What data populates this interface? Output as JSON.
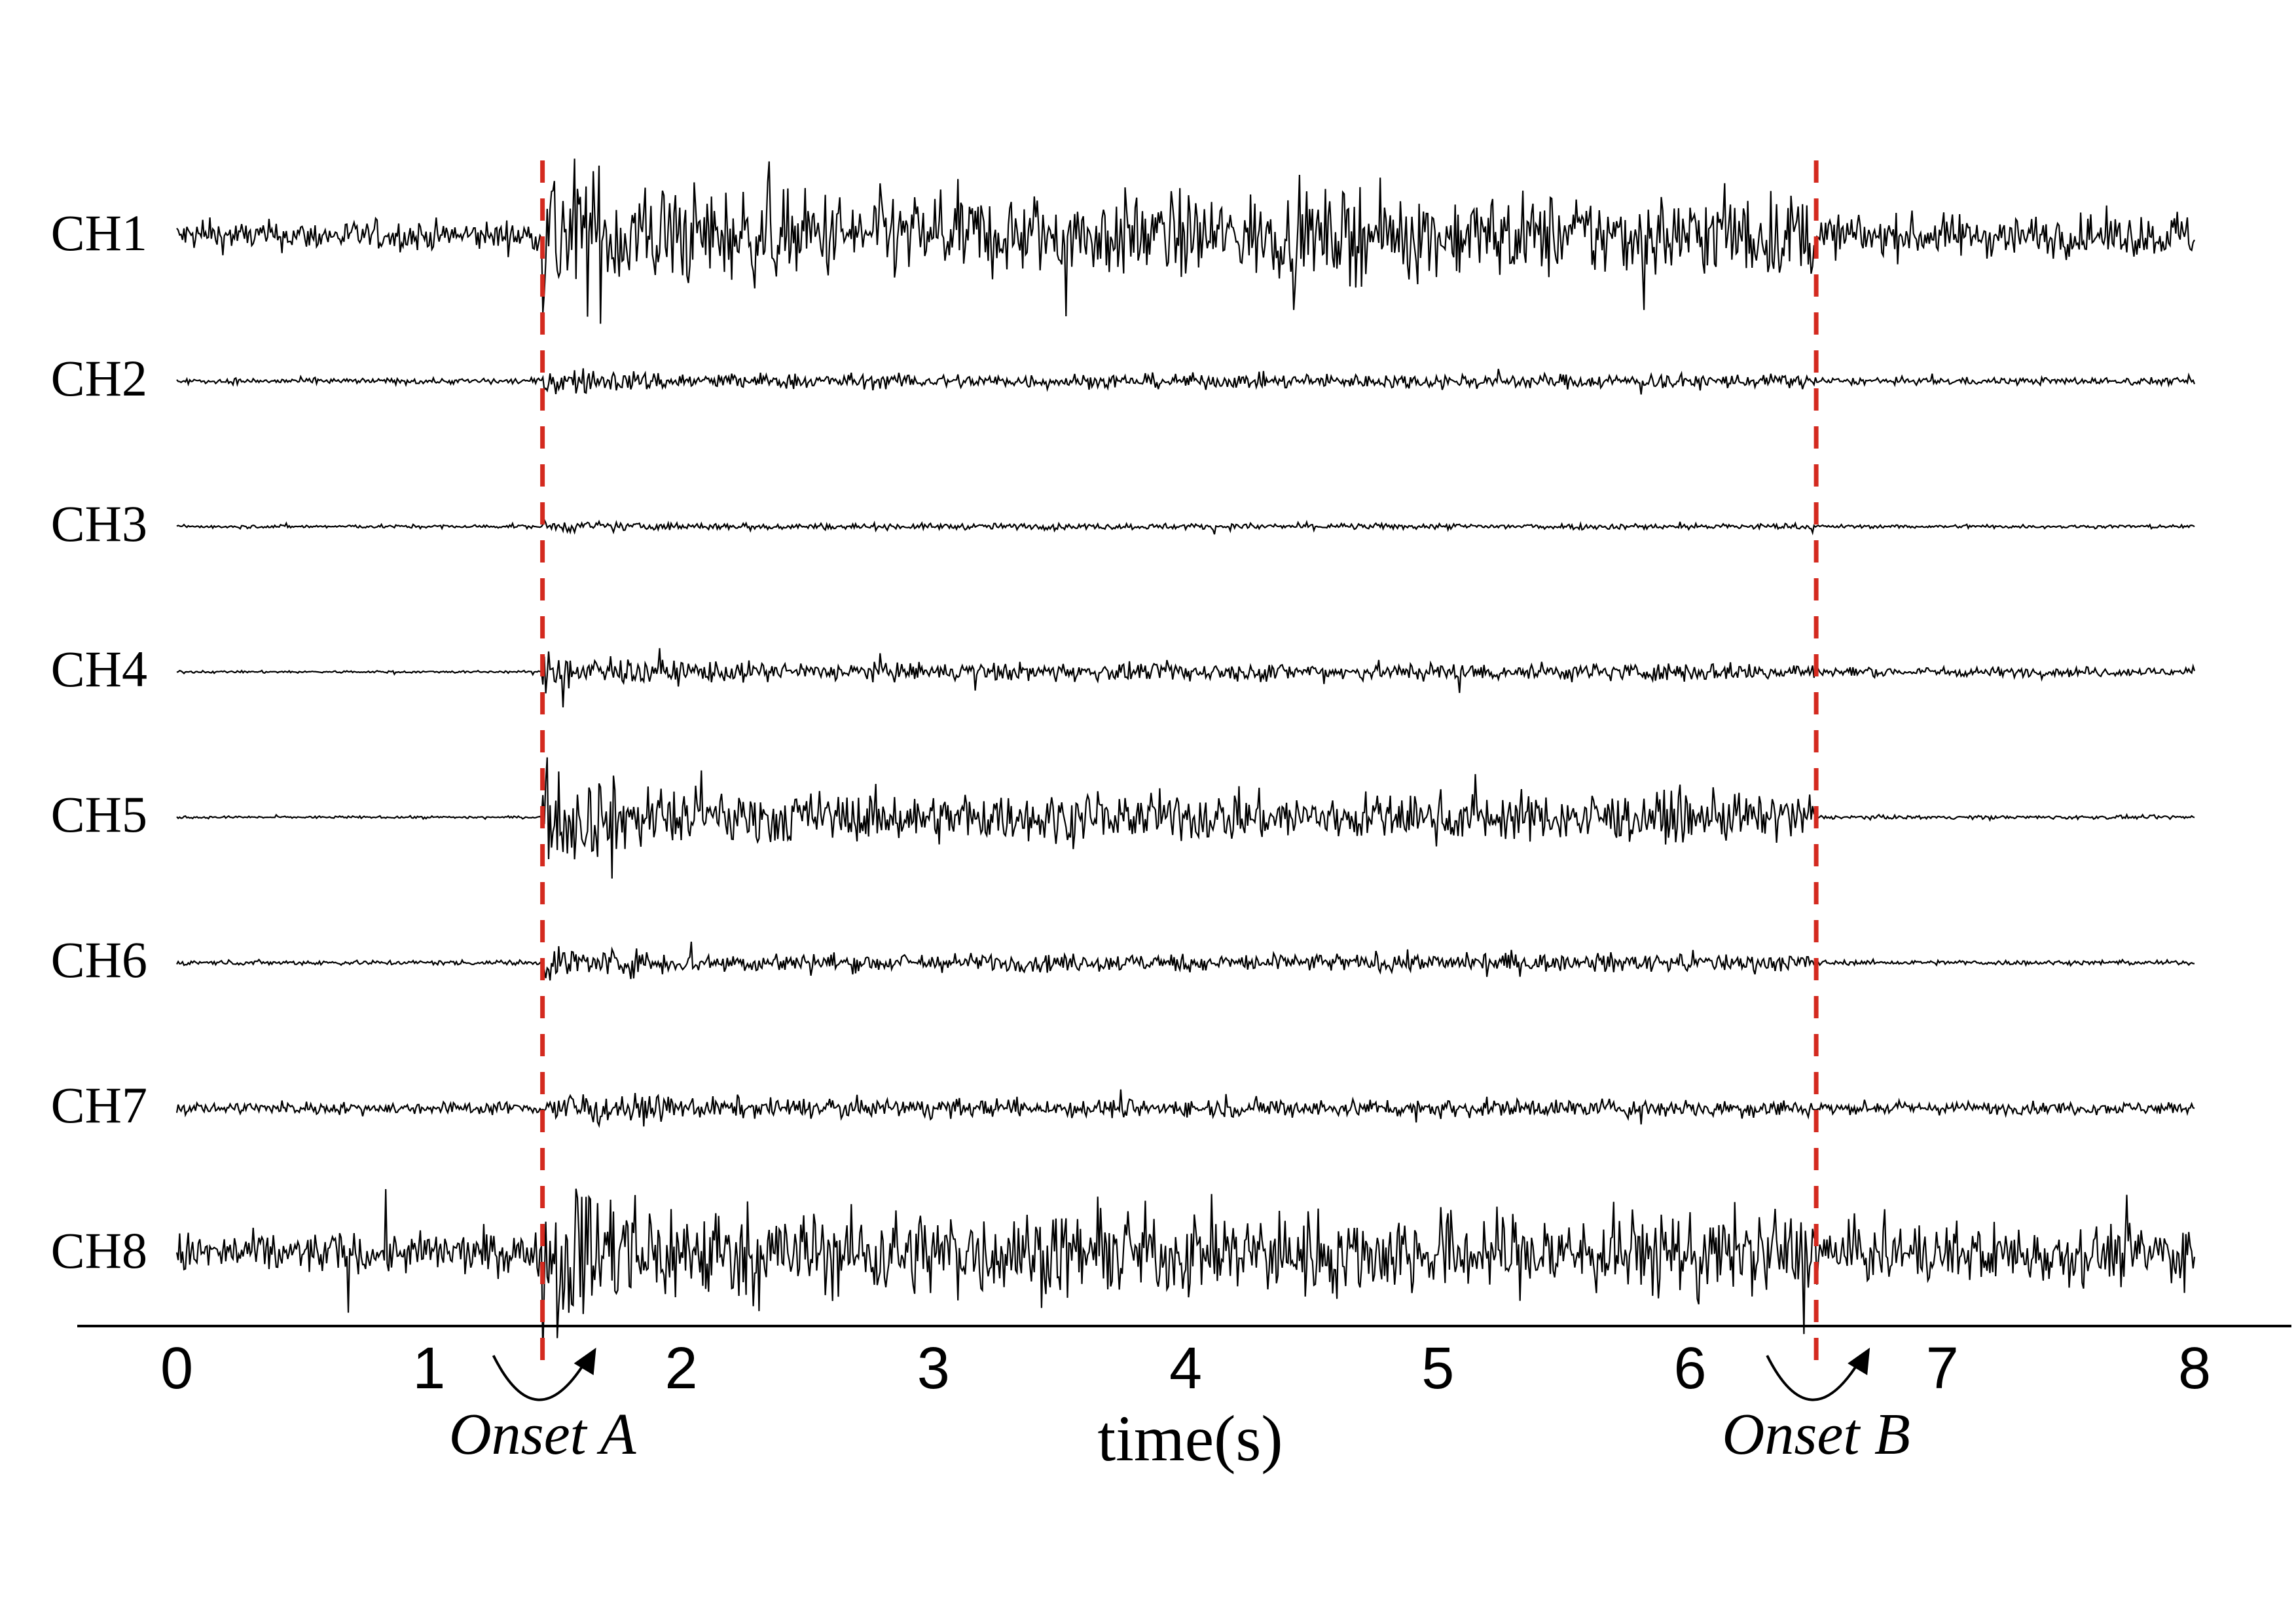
{
  "chart_data": {
    "type": "line",
    "title": "",
    "xlabel": "time(s)",
    "ylabel": "",
    "xlim": [
      0,
      8
    ],
    "x_ticks": [
      "0",
      "1",
      "2",
      "3",
      "4",
      "5",
      "6",
      "7",
      "8"
    ],
    "grid": false,
    "legend": "none",
    "series": [
      {
        "name": "CH1",
        "amplitude_before_onset_a": 0.25,
        "amplitude_between_onsets": 0.7,
        "amplitude_after_onset_b": 0.35
      },
      {
        "name": "CH2",
        "amplitude_before_onset_a": 0.05,
        "amplitude_between_onsets": 0.12,
        "amplitude_after_onset_b": 0.06
      },
      {
        "name": "CH3",
        "amplitude_before_onset_a": 0.03,
        "amplitude_between_onsets": 0.05,
        "amplitude_after_onset_b": 0.03
      },
      {
        "name": "CH4",
        "amplitude_before_onset_a": 0.02,
        "amplitude_between_onsets": 0.15,
        "amplitude_after_onset_b": 0.08
      },
      {
        "name": "CH5",
        "amplitude_before_onset_a": 0.02,
        "amplitude_between_onsets": 0.4,
        "amplitude_after_onset_b": 0.03
      },
      {
        "name": "CH6",
        "amplitude_before_onset_a": 0.04,
        "amplitude_between_onsets": 0.15,
        "amplitude_after_onset_b": 0.04
      },
      {
        "name": "CH7",
        "amplitude_before_onset_a": 0.1,
        "amplitude_between_onsets": 0.15,
        "amplitude_after_onset_b": 0.1
      },
      {
        "name": "CH8",
        "amplitude_before_onset_a": 0.35,
        "amplitude_between_onsets": 0.7,
        "amplitude_after_onset_b": 0.5
      }
    ],
    "onsets": [
      {
        "label": "Onset A",
        "time": 1.45
      },
      {
        "label": "Onset B",
        "time": 6.5
      }
    ],
    "colors": {
      "trace": "#000000",
      "onset_line": "#d42a1f",
      "axis": "#000000"
    }
  }
}
